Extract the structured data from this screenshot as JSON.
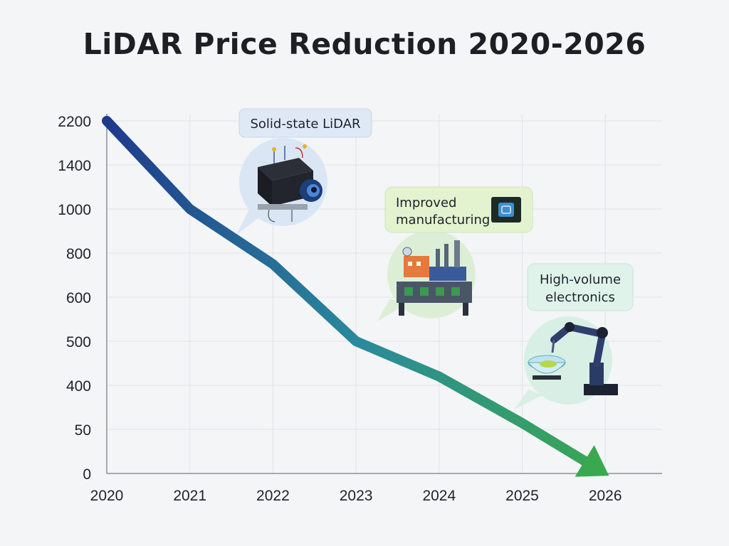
{
  "chart_data": {
    "type": "line",
    "title": "LiDAR Price Reduction 2020-2026",
    "xlabel": "",
    "ylabel": "",
    "x": [
      "2020",
      "2021",
      "2022",
      "2023",
      "2024",
      "2025",
      "2026"
    ],
    "y_ticks": [
      "0",
      "50",
      "400",
      "500",
      "600",
      "800",
      "1000",
      "1400",
      "2200"
    ],
    "series": [
      {
        "values": [
          2200,
          1000,
          750,
          500,
          420,
          100,
          0
        ]
      }
    ],
    "grid": true,
    "annotations": [
      {
        "text": "Solid-state LiDAR",
        "icon": "lidar-sensor-icon",
        "x": "2021"
      },
      {
        "text_lines": [
          "Improved",
          "manufacturing"
        ],
        "icon": "factory-icon",
        "x": "2023"
      },
      {
        "text_lines": [
          "High-volume",
          "electronics"
        ],
        "icon": "robotic-arm-icon",
        "x": "2025"
      }
    ],
    "colors": {
      "line_start": "#1f3a8c",
      "line_mid": "#2a8a9c",
      "line_end": "#3aa84e"
    }
  }
}
